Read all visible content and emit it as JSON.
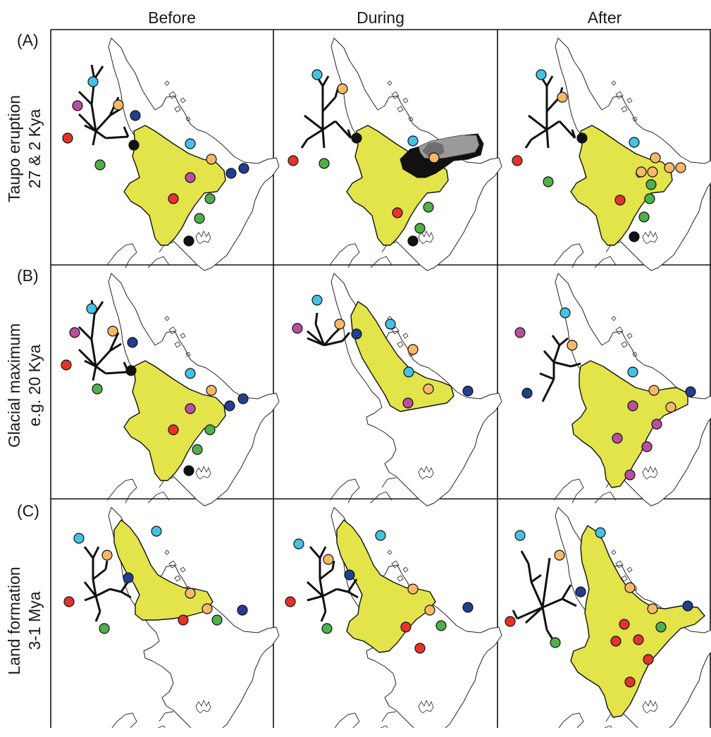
{
  "columns": [
    "Before",
    "During",
    "After"
  ],
  "rows": [
    {
      "tag": "(A)",
      "label_line1": "Taupo eruption",
      "label_line2": "27 & 2 Kya"
    },
    {
      "tag": "(B)",
      "label_line1": "Glacial maximum",
      "label_line2": "e.g. 20 Kya"
    },
    {
      "tag": "(C)",
      "label_line1": "Land formation",
      "label_line2": "3-1 Mya"
    }
  ],
  "colors": {
    "range_fill": "#e2e44a",
    "cyan": "#45c1e4",
    "orange": "#f8b967",
    "magenta": "#b94fa0",
    "navy": "#233e8f",
    "red": "#e3342c",
    "green": "#4fb04a",
    "black": "#111111",
    "ash_dark": "#111111",
    "ash_mid": "#9a9a9a",
    "ash_light": "#6f6f6f"
  }
}
